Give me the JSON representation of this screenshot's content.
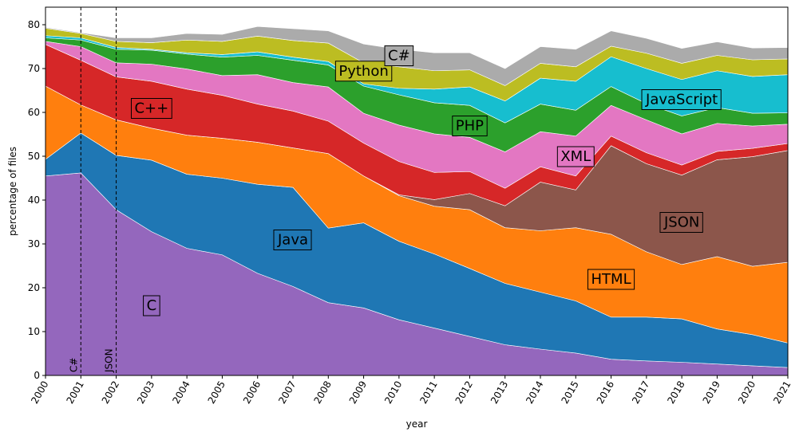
{
  "chart_data": {
    "type": "stackedarea",
    "xlabel": "year",
    "ylabel": "percentage of files",
    "x": [
      2000,
      2001,
      2002,
      2003,
      2004,
      2005,
      2006,
      2007,
      2008,
      2009,
      2010,
      2011,
      2012,
      2013,
      2014,
      2015,
      2016,
      2017,
      2018,
      2019,
      2020,
      2021
    ],
    "xlim": [
      2000,
      2021
    ],
    "xticks": [
      2000,
      2001,
      2002,
      2003,
      2004,
      2005,
      2006,
      2007,
      2008,
      2009,
      2010,
      2011,
      2012,
      2013,
      2014,
      2015,
      2016,
      2017,
      2018,
      2019,
      2020,
      2021
    ],
    "ylim": [
      0,
      84
    ],
    "yticks": [
      0,
      10,
      20,
      30,
      40,
      50,
      60,
      70,
      80
    ],
    "annotations": [
      {
        "x": 2001,
        "label": "C#"
      },
      {
        "x": 2002,
        "label": "JSON"
      }
    ],
    "series": [
      {
        "name": "C",
        "color": "#9467bd",
        "values": [
          45.5,
          46.2,
          37.8,
          32.8,
          29,
          27.5,
          23.3,
          20.3,
          16.6,
          15.4,
          12.7,
          10.8,
          8.9,
          7,
          6,
          5.1,
          3.7,
          3.3,
          3.0,
          2.6,
          2.2,
          1.8
        ]
      },
      {
        "name": "Java",
        "color": "#1f77b4",
        "values": [
          3.8,
          9.1,
          12.4,
          16.3,
          16.9,
          17.5,
          20.3,
          22.6,
          17.0,
          19.4,
          17.9,
          16.9,
          15.5,
          14.0,
          13.0,
          11.9,
          9.6,
          10.0,
          9.9,
          8.0,
          7.1,
          5.6
        ]
      },
      {
        "name": "HTML",
        "color": "#ff7f0e",
        "values": [
          16.7,
          6.4,
          8.1,
          7.3,
          8.9,
          9.1,
          9.6,
          9.0,
          17.0,
          10.7,
          10.4,
          10.9,
          13.4,
          12.7,
          14.0,
          16.7,
          18.9,
          14.9,
          12.4,
          16.5,
          15.6,
          18.4
        ]
      },
      {
        "name": "JSON",
        "color": "#8c564b",
        "values": [
          0,
          0,
          0,
          0,
          0,
          0,
          0,
          0,
          0,
          0,
          0.2,
          1.5,
          3.7,
          5.0,
          11.1,
          8.6,
          20.2,
          20.1,
          20.4,
          22.1,
          25.0,
          25.5
        ]
      },
      {
        "name": "C++",
        "color": "#d62728",
        "values": [
          9.5,
          10.2,
          9.8,
          10.7,
          10.5,
          9.8,
          8.7,
          8.4,
          7.4,
          7.5,
          7.6,
          6.2,
          5.0,
          4.0,
          3.5,
          3.2,
          2.2,
          2.5,
          2.3,
          1.9,
          1.9,
          1.6
        ]
      },
      {
        "name": "XML",
        "color": "#e377c2",
        "values": [
          0.7,
          3.1,
          3.2,
          3.9,
          4.6,
          4.5,
          6.7,
          6.5,
          7.8,
          6.8,
          8.3,
          8.8,
          7.8,
          8.3,
          8.0,
          9.1,
          7.0,
          7.5,
          7.1,
          6.4,
          5.1,
          4.4
        ]
      },
      {
        "name": "PHP",
        "color": "#2ca02c",
        "values": [
          0.8,
          1.5,
          3.1,
          3.2,
          3.4,
          4.2,
          4.4,
          5.1,
          5.0,
          6.2,
          6.9,
          7.1,
          7.3,
          6.6,
          6.3,
          5.9,
          4.3,
          3.7,
          4.1,
          3.6,
          2.9,
          2.6
        ]
      },
      {
        "name": "JavaScript",
        "color": "#17becf",
        "values": [
          0.5,
          0.5,
          0.4,
          0.2,
          0.3,
          0.6,
          0.8,
          0.7,
          0.8,
          0.5,
          1.5,
          3.1,
          4.2,
          5.0,
          5.9,
          6.6,
          6.8,
          8.0,
          8.3,
          8.4,
          8.4,
          8.7
        ]
      },
      {
        "name": "Python",
        "color": "#bcbd22",
        "values": [
          1.7,
          1.0,
          1.4,
          1.5,
          2.9,
          3.0,
          3.6,
          3.8,
          4.2,
          4.8,
          4.9,
          4.2,
          3.9,
          3.5,
          3.4,
          3.3,
          2.4,
          3.5,
          3.7,
          3.5,
          3.8,
          3.6
        ]
      },
      {
        "name": "C#",
        "color": "#ababab",
        "values": [
          0.2,
          0.2,
          0.8,
          1.1,
          1.5,
          1.6,
          2.2,
          2.7,
          2.8,
          4.3,
          4.0,
          4.1,
          3.9,
          3.9,
          3.8,
          4.0,
          3.5,
          3.4,
          3.4,
          3.1,
          2.7,
          2.6
        ]
      }
    ]
  }
}
